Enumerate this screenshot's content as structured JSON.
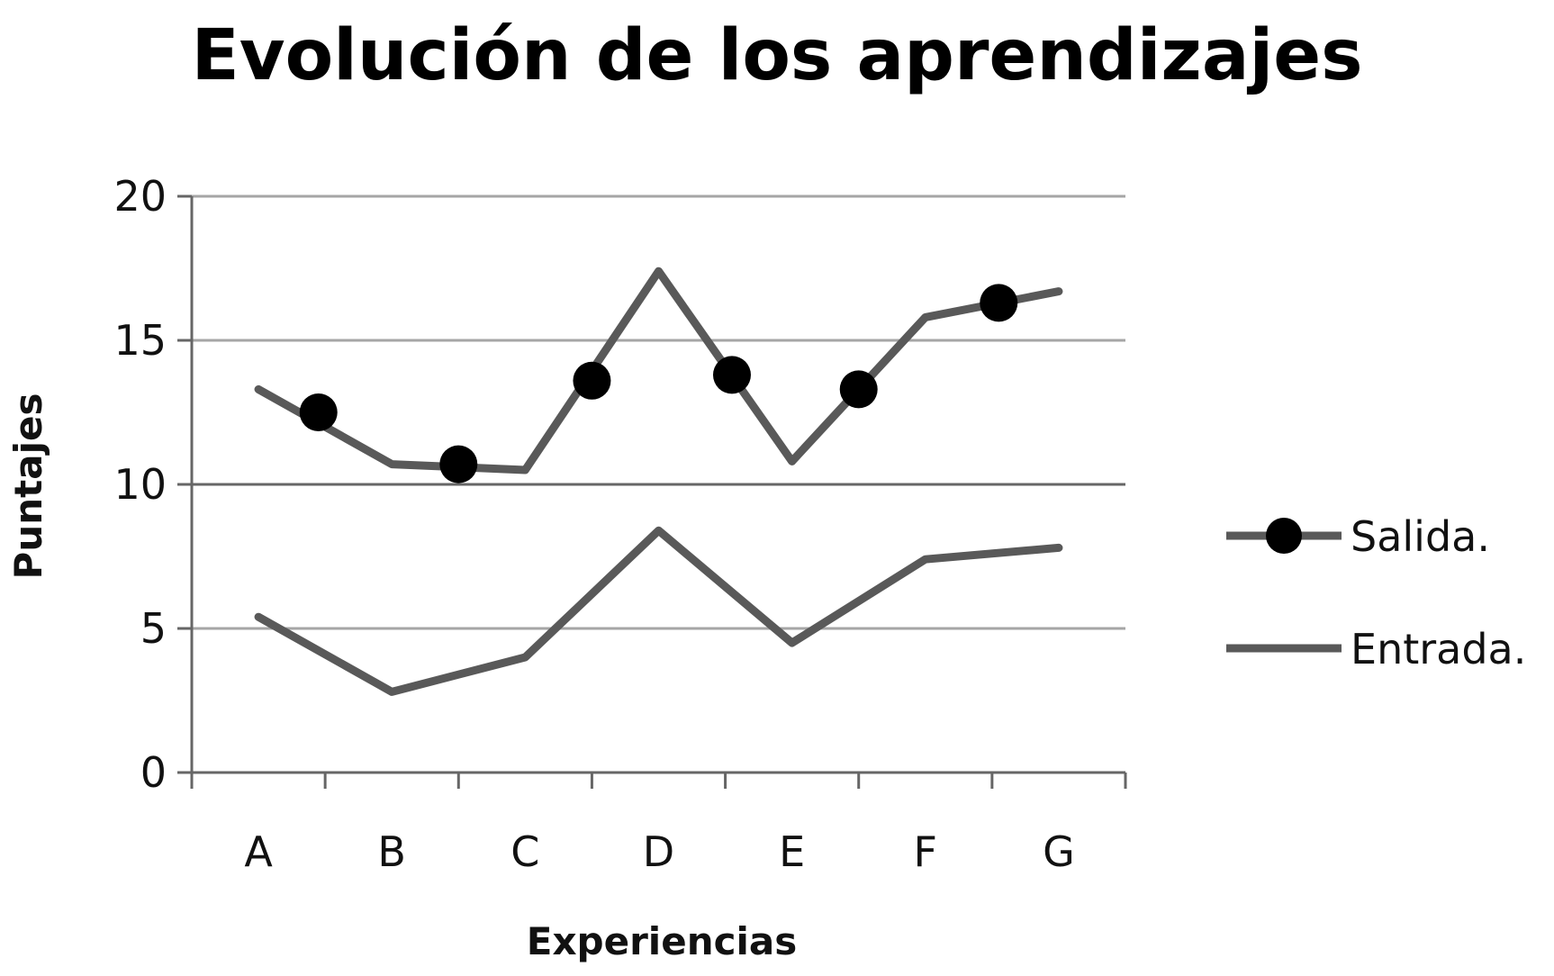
{
  "chart_data": {
    "type": "line",
    "title": "Evolución de los aprendizajes",
    "xlabel": "Experiencias",
    "ylabel": "Puntajes",
    "categories": [
      "A",
      "B",
      "C",
      "D",
      "E",
      "F",
      "G"
    ],
    "ylim": [
      0,
      20
    ],
    "yticks": [
      "0",
      "5",
      "10",
      "15",
      "20"
    ],
    "grid": true,
    "legend_position": "right",
    "series": [
      {
        "name": "Salida.",
        "values": [
          13.3,
          10.7,
          10.5,
          17.4,
          10.8,
          15.8,
          16.7
        ],
        "marker_values": [
          {
            "x": 0.45,
            "y": 12.5
          },
          {
            "x": 1.5,
            "y": 10.7
          },
          {
            "x": 2.5,
            "y": 13.6
          },
          {
            "x": 3.55,
            "y": 13.8
          },
          {
            "x": 4.5,
            "y": 13.3
          },
          {
            "x": 5.55,
            "y": 16.3
          }
        ],
        "color": "#595959",
        "marker": "circle",
        "marker_color": "#000000"
      },
      {
        "name": "Entrada.",
        "values": [
          5.4,
          2.8,
          4.0,
          8.4,
          4.5,
          7.4,
          7.8
        ],
        "color": "#595959",
        "marker": "none"
      }
    ]
  }
}
